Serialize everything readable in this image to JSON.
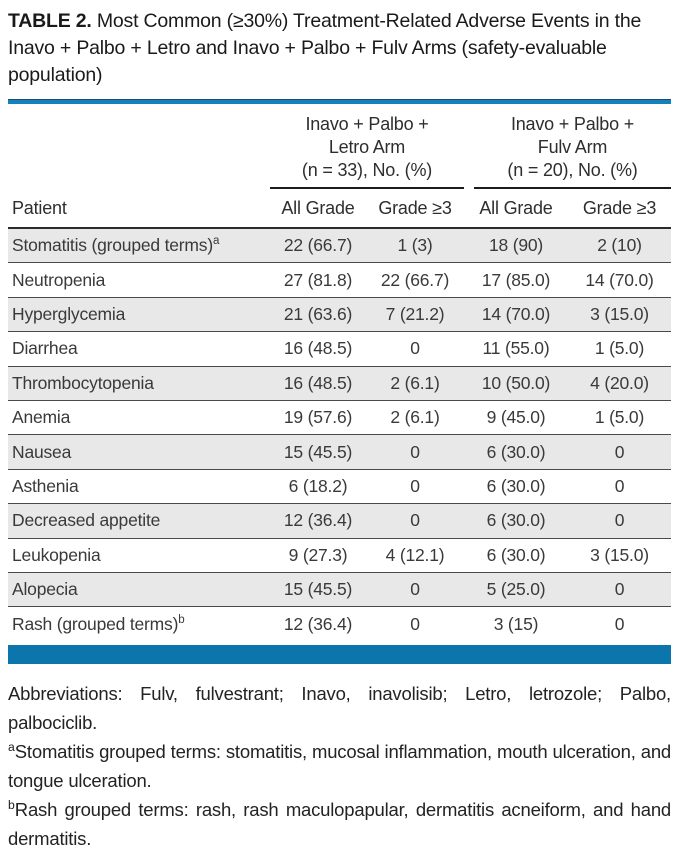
{
  "title": {
    "label": "TABLE 2.",
    "text": " Most Common (≥30%) Treatment-Related Adverse Events in the Inavo + Palbo + Letro and Inavo + Palbo + Fulv Arms (safety-evaluable population)"
  },
  "table": {
    "col_groups": [
      {
        "lines": [
          "Inavo + Palbo +",
          "Letro Arm",
          "(n = 33), No. (%)"
        ]
      },
      {
        "lines": [
          "Inavo + Palbo +",
          "Fulv Arm",
          "(n = 20), No. (%)"
        ]
      }
    ],
    "row_header": "Patient",
    "sub_headers": [
      "All Grade",
      "Grade ≥3",
      "All Grade",
      "Grade ≥3"
    ],
    "rows": [
      {
        "label": "Stomatitis (grouped terms)",
        "sup": "a",
        "values": [
          "22 (66.7)",
          "1 (3)",
          "18 (90)",
          "2 (10)"
        ],
        "shaded": true
      },
      {
        "label": "Neutropenia",
        "sup": "",
        "values": [
          "27 (81.8)",
          "22 (66.7)",
          "17 (85.0)",
          "14 (70.0)"
        ],
        "shaded": false
      },
      {
        "label": "Hyperglycemia",
        "sup": "",
        "values": [
          "21 (63.6)",
          "7 (21.2)",
          "14 (70.0)",
          "3 (15.0)"
        ],
        "shaded": true
      },
      {
        "label": "Diarrhea",
        "sup": "",
        "values": [
          "16 (48.5)",
          "0",
          "11 (55.0)",
          "1 (5.0)"
        ],
        "shaded": false
      },
      {
        "label": "Thrombocytopenia",
        "sup": "",
        "values": [
          "16 (48.5)",
          "2 (6.1)",
          "10 (50.0)",
          "4 (20.0)"
        ],
        "shaded": true
      },
      {
        "label": "Anemia",
        "sup": "",
        "values": [
          "19 (57.6)",
          "2 (6.1)",
          "9 (45.0)",
          "1 (5.0)"
        ],
        "shaded": false
      },
      {
        "label": "Nausea",
        "sup": "",
        "values": [
          "15 (45.5)",
          "0",
          "6 (30.0)",
          "0"
        ],
        "shaded": true
      },
      {
        "label": "Asthenia",
        "sup": "",
        "values": [
          "6 (18.2)",
          "0",
          "6 (30.0)",
          "0"
        ],
        "shaded": false
      },
      {
        "label": "Decreased appetite",
        "sup": "",
        "values": [
          "12 (36.4)",
          "0",
          "6 (30.0)",
          "0"
        ],
        "shaded": true
      },
      {
        "label": "Leukopenia",
        "sup": "",
        "values": [
          "9 (27.3)",
          "4 (12.1)",
          "6 (30.0)",
          "3 (15.0)"
        ],
        "shaded": false
      },
      {
        "label": "Alopecia",
        "sup": "",
        "values": [
          "15 (45.5)",
          "0",
          "5 (25.0)",
          "0"
        ],
        "shaded": true
      },
      {
        "label": "Rash (grouped terms)",
        "sup": "b",
        "values": [
          "12 (36.4)",
          "0",
          "3 (15)",
          "0"
        ],
        "shaded": false
      }
    ]
  },
  "footnotes": [
    {
      "sup": "",
      "text": "Abbreviations: Fulv, fulvestrant; Inavo, inavolisib; Letro, letrozole; Palbo, palbociclib."
    },
    {
      "sup": "a",
      "text": "Stomatitis grouped terms: stomatitis, mucosal inflammation, mouth ulceration, and tongue ulceration."
    },
    {
      "sup": "b",
      "text": "Rash grouped terms: rash, rash maculopapular, dermatitis acneiform, and hand dermatitis."
    }
  ],
  "colors": {
    "accent_blue": "#0b75ac",
    "accent_blue_light": "#1581ba",
    "accent_blue_dark": "#16506e",
    "row_shade": "#e8e8e8",
    "row_divider": "#4a4a4a",
    "text": "#222222"
  }
}
